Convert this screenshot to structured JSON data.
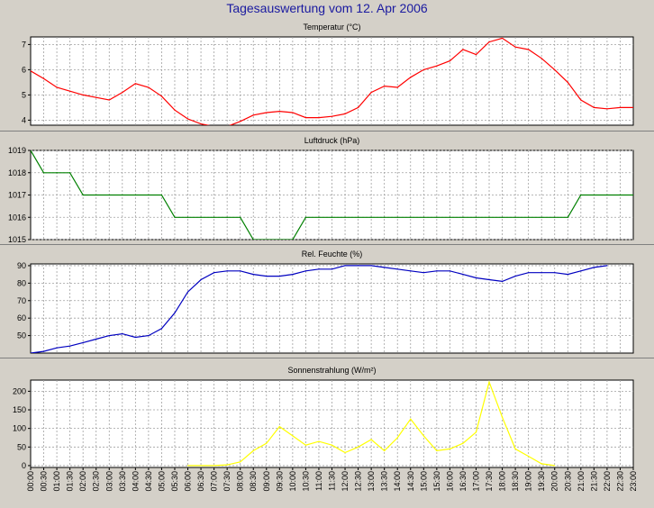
{
  "page_title": "Tagesauswertung vom 12. Apr 2006",
  "colors": {
    "background": "#d4d0c8",
    "plot_background": "#ffffff",
    "grid": "#a0a0a0",
    "title": "#1a1aa0",
    "temperature": "#ff0000",
    "pressure": "#008000",
    "humidity": "#0000c0",
    "radiation": "#ffff00"
  },
  "chart_data": [
    {
      "type": "line",
      "title": "Temperatur (°C)",
      "series_color": "#ff0000",
      "ylim": [
        3.8,
        7.3
      ],
      "yticks": [
        4,
        5,
        6,
        7
      ],
      "grid": true,
      "x_hours": [
        0,
        0.5,
        1,
        1.5,
        2,
        2.5,
        3,
        3.5,
        4,
        4.5,
        5,
        5.5,
        6,
        6.5,
        7,
        7.5,
        8,
        8.5,
        9,
        9.5,
        10,
        10.5,
        11,
        11.5,
        12,
        12.5,
        13,
        13.5,
        14,
        14.5,
        15,
        15.5,
        16,
        16.5,
        17,
        17.5,
        18,
        18.5,
        19,
        19.5,
        20,
        20.5,
        21,
        21.5,
        22,
        22.5,
        23
      ],
      "values": [
        5.95,
        5.65,
        5.3,
        5.15,
        5.0,
        4.9,
        4.8,
        5.1,
        5.45,
        5.3,
        4.95,
        4.4,
        4.05,
        3.85,
        3.75,
        3.75,
        3.95,
        4.2,
        4.3,
        4.35,
        4.3,
        4.1,
        4.1,
        4.15,
        4.25,
        4.5,
        5.1,
        5.35,
        5.3,
        5.7,
        6.0,
        6.15,
        6.35,
        6.8,
        6.6,
        7.1,
        7.25,
        6.9,
        6.8,
        6.45,
        6.0,
        5.5,
        4.8,
        4.5,
        4.45,
        4.5,
        4.5
      ]
    },
    {
      "type": "line",
      "title": "Luftdruck (hPa)",
      "series_color": "#008000",
      "ylim": [
        1015,
        1019
      ],
      "yticks": [
        1015,
        1016,
        1017,
        1018,
        1019
      ],
      "grid": true,
      "x_hours": [
        0,
        0.5,
        1,
        1.5,
        2,
        2.5,
        3,
        3.5,
        4,
        4.5,
        5,
        5.5,
        6,
        6.5,
        7,
        7.5,
        8,
        8.5,
        9,
        9.5,
        10,
        10.5,
        11,
        11.5,
        12,
        12.5,
        13,
        13.5,
        14,
        14.5,
        15,
        15.5,
        16,
        16.5,
        17,
        17.5,
        18,
        18.5,
        19,
        19.5,
        20,
        20.5,
        21,
        21.5,
        22,
        22.5,
        23
      ],
      "values": [
        1019,
        1018,
        1018,
        1018,
        1017,
        1017,
        1017,
        1017,
        1017,
        1017,
        1017,
        1016,
        1016,
        1016,
        1016,
        1016,
        1016,
        1015,
        1015,
        1015,
        1015,
        1016,
        1016,
        1016,
        1016,
        1016,
        1016,
        1016,
        1016,
        1016,
        1016,
        1016,
        1016,
        1016,
        1016,
        1016,
        1016,
        1016,
        1016,
        1016,
        1016,
        1016,
        1017,
        1017,
        1017,
        1017,
        1017
      ]
    },
    {
      "type": "line",
      "title": "Rel. Feuchte (%)",
      "series_color": "#0000c0",
      "ylim": [
        40,
        91
      ],
      "yticks": [
        50,
        60,
        70,
        80,
        90
      ],
      "grid": true,
      "x_hours": [
        0,
        0.5,
        1,
        1.5,
        2,
        2.5,
        3,
        3.5,
        4,
        4.5,
        5,
        5.5,
        6,
        6.5,
        7,
        7.5,
        8,
        8.5,
        9,
        9.5,
        10,
        10.5,
        11,
        11.5,
        12,
        12.5,
        13,
        13.5,
        14,
        14.5,
        15,
        15.5,
        16,
        16.5,
        17,
        17.5,
        18,
        18.5,
        19,
        19.5,
        20,
        20.5,
        21,
        21.5,
        22
      ],
      "values": [
        40,
        41,
        43,
        44,
        46,
        48,
        50,
        51,
        49,
        50,
        54,
        63,
        75,
        82,
        86,
        87,
        87,
        85,
        84,
        84,
        85,
        87,
        88,
        88,
        90,
        90,
        90,
        89,
        88,
        87,
        86,
        87,
        87,
        85,
        83,
        82,
        81,
        84,
        86,
        86,
        86,
        85,
        87,
        89,
        90
      ]
    },
    {
      "type": "line",
      "title": "Sonnenstrahlung (W/m²)",
      "series_color": "#ffff00",
      "ylim": [
        -5,
        230
      ],
      "yticks": [
        0,
        50,
        100,
        150,
        200
      ],
      "grid": true,
      "x_hours": [
        6,
        6.5,
        7,
        7.5,
        8,
        8.5,
        9,
        9.5,
        10,
        10.5,
        11,
        11.5,
        12,
        12.5,
        13,
        13.5,
        14,
        14.5,
        15,
        15.5,
        16,
        16.5,
        17,
        17.5,
        18,
        18.5,
        19,
        19.5,
        20
      ],
      "values": [
        0,
        0,
        0,
        2,
        10,
        40,
        60,
        105,
        80,
        55,
        65,
        55,
        35,
        50,
        70,
        40,
        75,
        125,
        80,
        40,
        45,
        60,
        90,
        225,
        130,
        45,
        25,
        5,
        0
      ]
    }
  ],
  "x_axis_labels": [
    "00:00",
    "00:30",
    "01:00",
    "01:30",
    "02:00",
    "02:30",
    "03:00",
    "03:30",
    "04:00",
    "04:30",
    "05:00",
    "05:30",
    "06:00",
    "06:30",
    "07:00",
    "07:30",
    "08:00",
    "08:30",
    "09:00",
    "09:30",
    "10:00",
    "10:30",
    "11:00",
    "11:30",
    "12:00",
    "12:30",
    "13:00",
    "13:30",
    "14:00",
    "14:30",
    "15:00",
    "15:30",
    "16:00",
    "16:30",
    "17:00",
    "17:30",
    "18:00",
    "18:30",
    "19:00",
    "19:30",
    "20:00",
    "20:30",
    "21:00",
    "21:30",
    "22:00",
    "22:30",
    "23:00"
  ]
}
